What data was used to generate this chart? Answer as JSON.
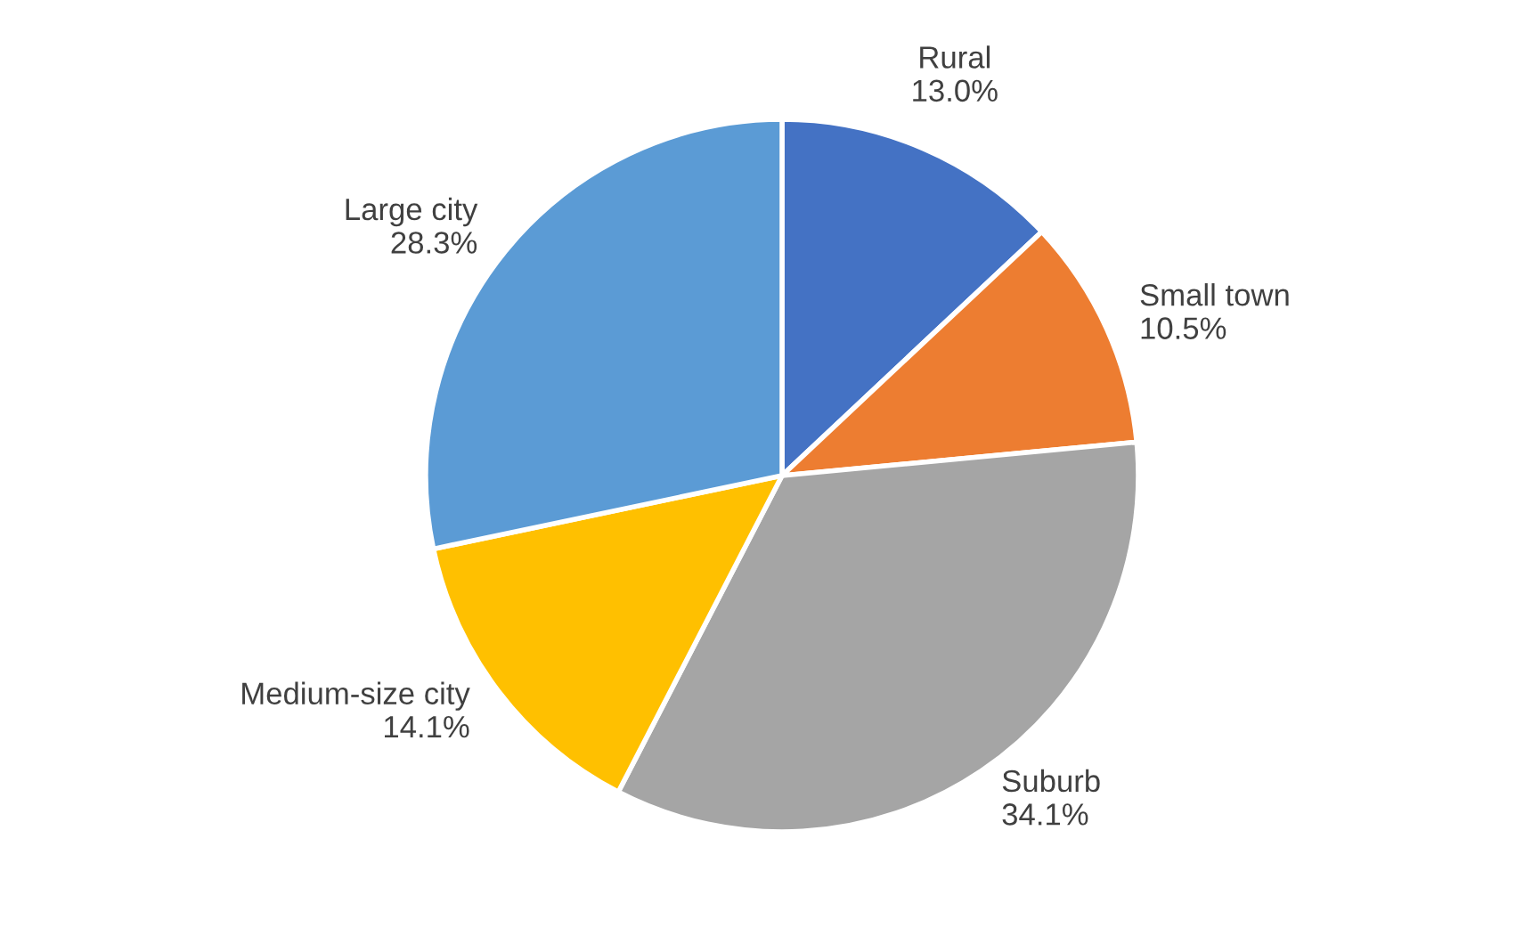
{
  "chart_data": {
    "type": "pie",
    "categories": [
      "Rural",
      "Small town",
      "Suburb",
      "Medium-size city",
      "Large city"
    ],
    "values": [
      13.0,
      10.5,
      34.1,
      14.1,
      28.3
    ],
    "value_labels": [
      "13.0%",
      "10.5%",
      "34.1%",
      "14.1%",
      "28.3%"
    ],
    "colors": [
      "#4472c4",
      "#ed7d31",
      "#a5a5a5",
      "#ffc000",
      "#5b9bd5"
    ],
    "legend": false
  }
}
